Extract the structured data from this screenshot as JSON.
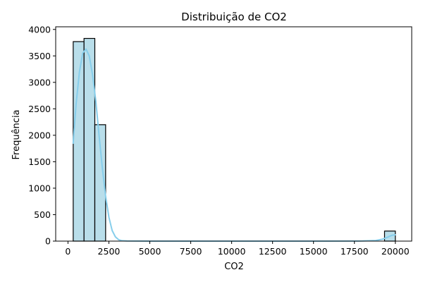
{
  "chart_data": {
    "type": "bar",
    "subtype": "histogram-with-kde",
    "title": "Distribuição de CO2",
    "xlabel": "CO2",
    "ylabel": "Frequência",
    "xlim": [
      -750,
      21000
    ],
    "ylim": [
      0,
      4050
    ],
    "x_ticks": [
      0,
      2500,
      5000,
      7500,
      10000,
      12500,
      15000,
      17500,
      20000
    ],
    "y_ticks": [
      0,
      500,
      1000,
      1500,
      2000,
      2500,
      3000,
      3500,
      4000
    ],
    "grid": false,
    "bins": [
      {
        "x0": 320,
        "x1": 980,
        "count": 3770
      },
      {
        "x0": 980,
        "x1": 1640,
        "count": 3830
      },
      {
        "x0": 1640,
        "x1": 2300,
        "count": 2200
      },
      {
        "x0": 19340,
        "x1": 20000,
        "count": 190
      }
    ],
    "kde": {
      "x": [
        320,
        500,
        700,
        900,
        1100,
        1300,
        1500,
        1700,
        1900,
        2100,
        2300,
        2500,
        2700,
        2900,
        3100,
        3300,
        3600,
        5000,
        10000,
        15000,
        18000,
        18800,
        19200,
        19500,
        19800,
        20000
      ],
      "y": [
        1850,
        2600,
        3200,
        3550,
        3630,
        3500,
        3150,
        2650,
        2000,
        1380,
        850,
        450,
        200,
        80,
        25,
        8,
        2,
        0,
        0,
        0,
        2,
        12,
        35,
        70,
        110,
        120
      ]
    },
    "colors": {
      "bar_fill": "#add8e6",
      "bar_stroke": "#000000",
      "kde_line": "#87ceeb"
    }
  }
}
